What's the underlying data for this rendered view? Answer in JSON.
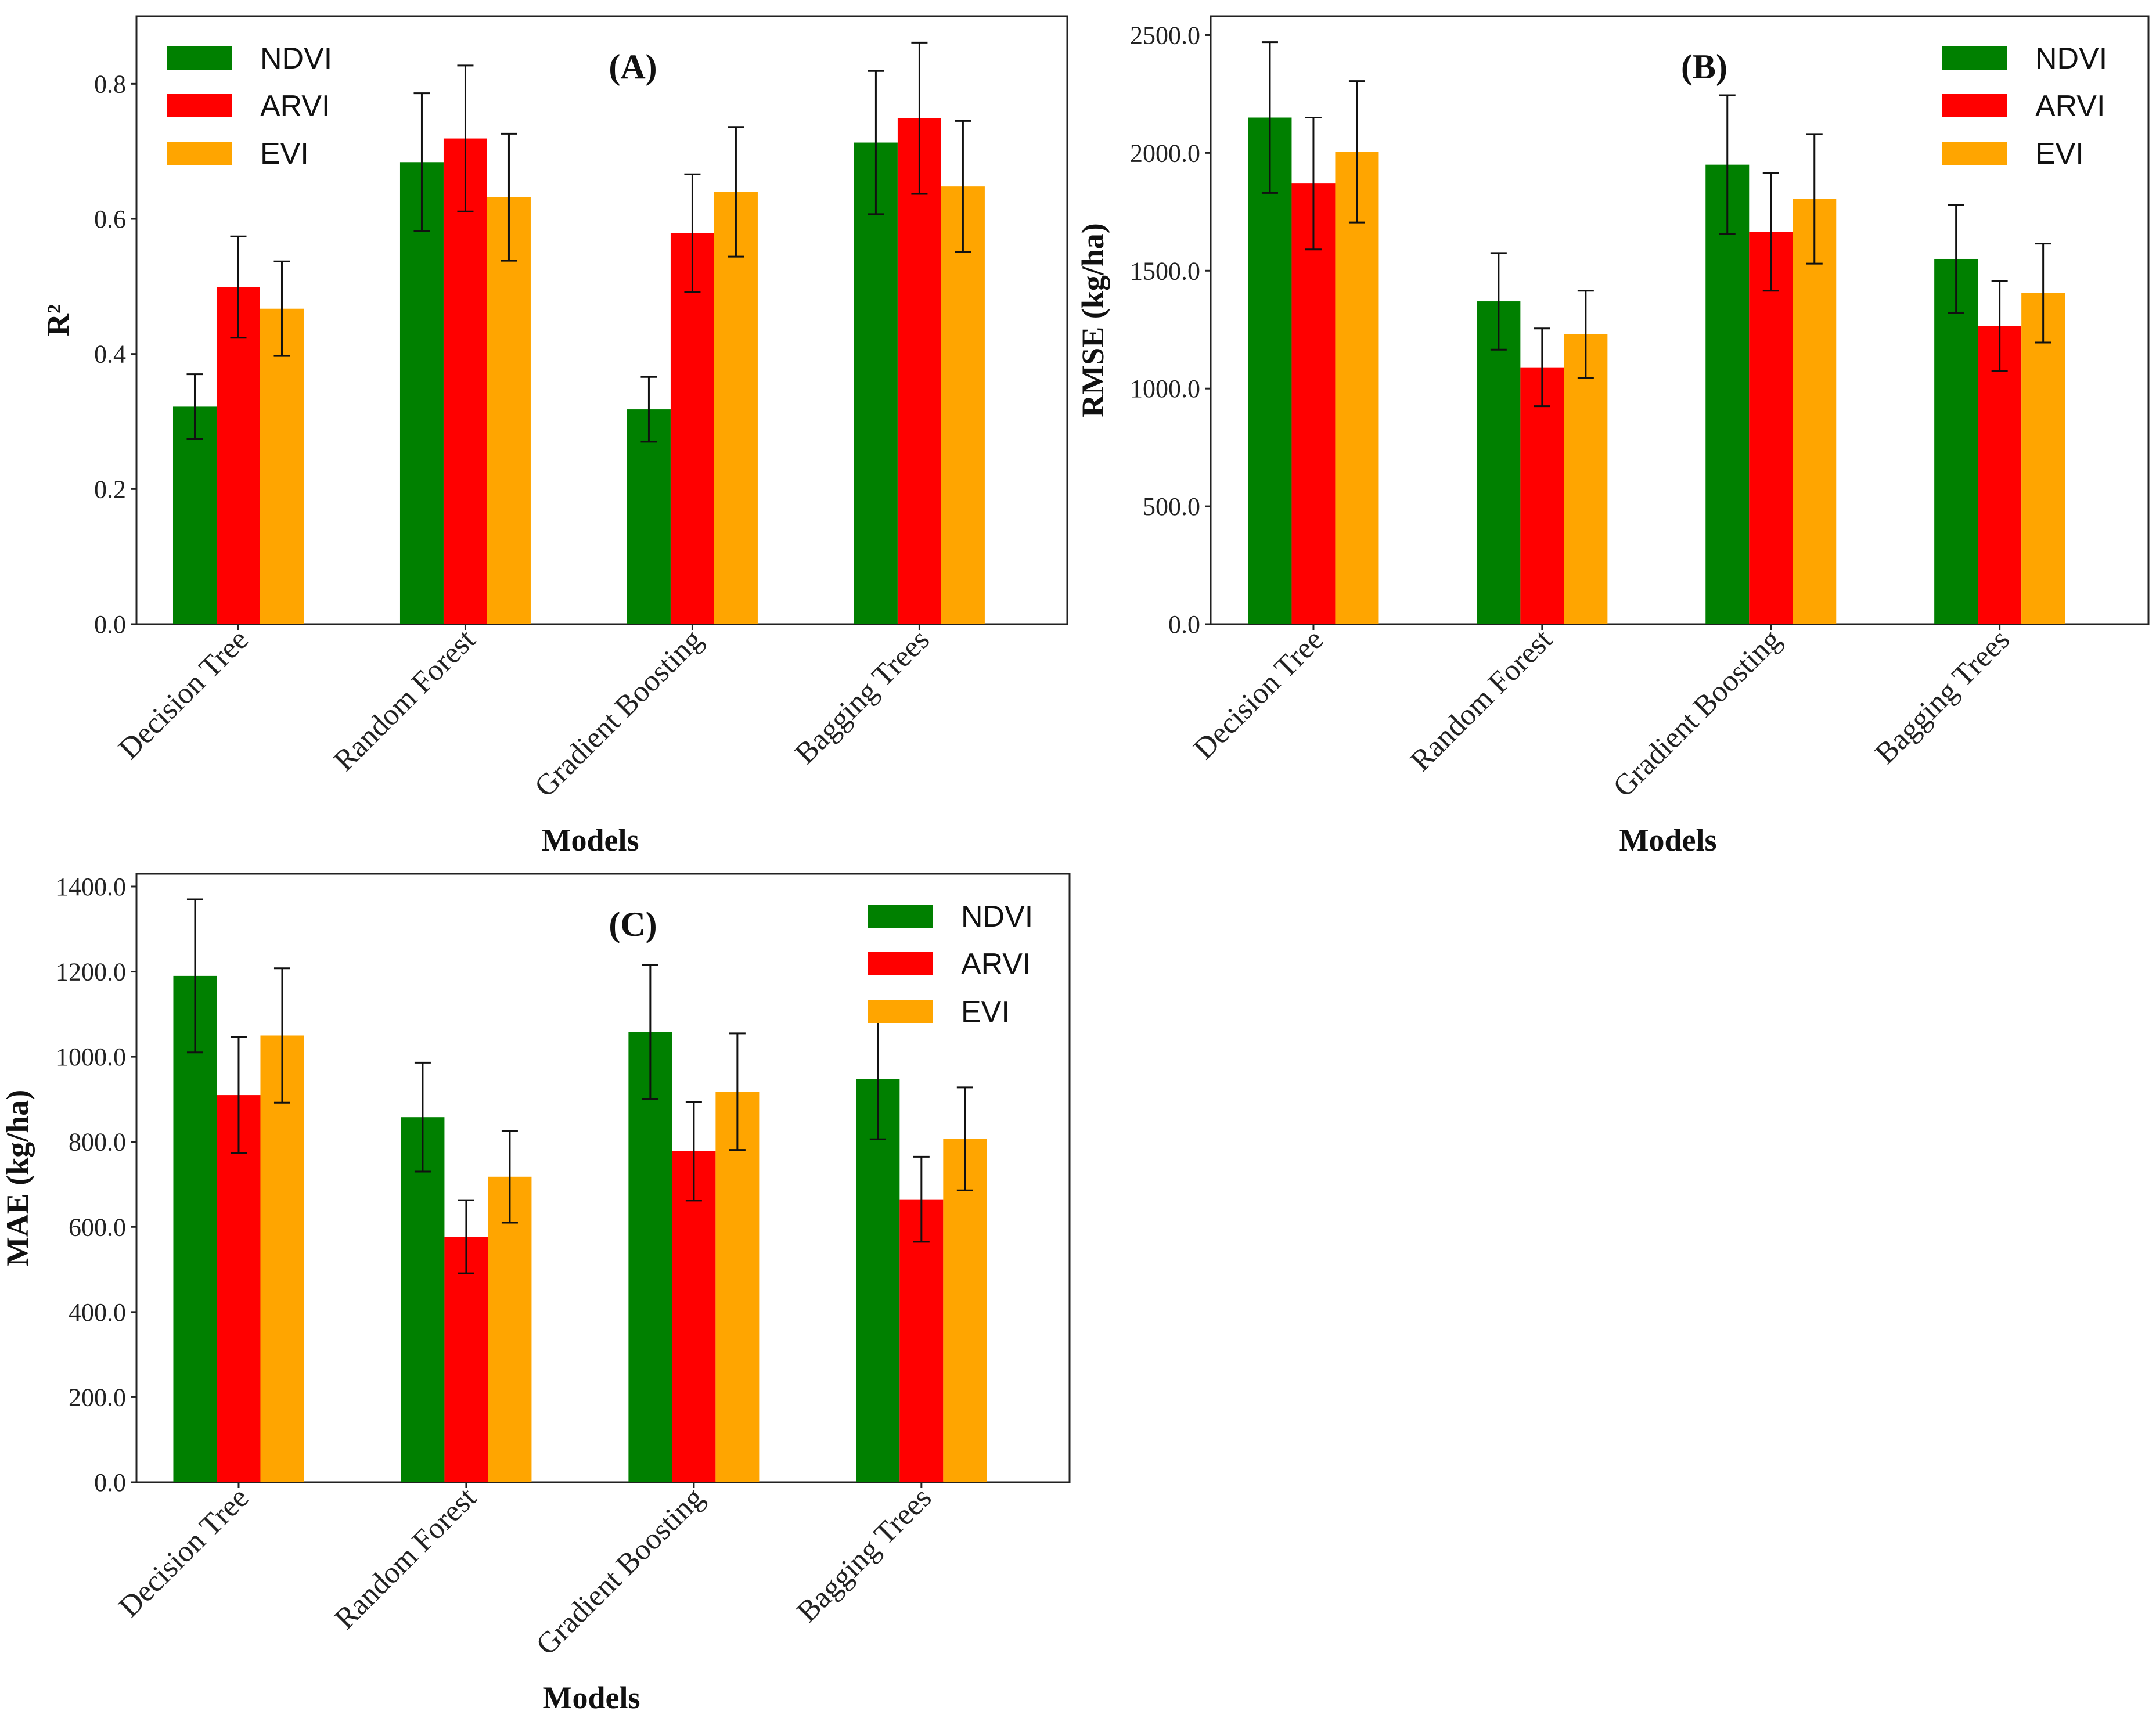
{
  "chart_data": [
    {
      "type": "bar",
      "panel_label": "(A)",
      "categories": [
        "Decision Tree",
        "Random Forest",
        "Gradient Boosting",
        "Bagging Trees"
      ],
      "xlabel": "Models",
      "ylabel": "R²",
      "ylim": [
        0,
        0.9
      ],
      "yticks": [
        0.0,
        0.2,
        0.4,
        0.6,
        0.8
      ],
      "tick_format": 1,
      "legend_position": "top-left",
      "series": [
        {
          "name": "NDVI",
          "color": "#008000",
          "values": [
            0.322,
            0.684,
            0.318,
            0.713
          ],
          "errors": [
            0.048,
            0.102,
            0.048,
            0.106
          ]
        },
        {
          "name": "ARVI",
          "color": "#ff0000",
          "values": [
            0.499,
            0.719,
            0.579,
            0.749
          ],
          "errors": [
            0.075,
            0.108,
            0.087,
            0.112
          ]
        },
        {
          "name": "EVI",
          "color": "#ffa500",
          "values": [
            0.467,
            0.632,
            0.64,
            0.648
          ],
          "errors": [
            0.07,
            0.094,
            0.096,
            0.097
          ]
        }
      ]
    },
    {
      "type": "bar",
      "panel_label": "(B)",
      "categories": [
        "Decision Tree",
        "Random Forest",
        "Gradient Boosting",
        "Bagging Trees"
      ],
      "xlabel": "Models",
      "ylabel": "RMSE (kg/ha)",
      "ylim": [
        0,
        2580
      ],
      "yticks": [
        0,
        500,
        1000,
        1500,
        2000,
        2500
      ],
      "tick_format": 1,
      "legend_position": "top-right",
      "series": [
        {
          "name": "NDVI",
          "color": "#008000",
          "values": [
            2150,
            1370,
            1950,
            1550
          ],
          "errors": [
            320,
            205,
            295,
            230
          ]
        },
        {
          "name": "ARVI",
          "color": "#ff0000",
          "values": [
            1870,
            1090,
            1665,
            1265
          ],
          "errors": [
            280,
            165,
            250,
            190
          ]
        },
        {
          "name": "EVI",
          "color": "#ffa500",
          "values": [
            2005,
            1230,
            1805,
            1405
          ],
          "errors": [
            300,
            185,
            275,
            210
          ]
        }
      ]
    },
    {
      "type": "bar",
      "panel_label": "(C)",
      "categories": [
        "Decision Tree",
        "Random Forest",
        "Gradient Boosting",
        "Bagging Trees"
      ],
      "xlabel": "Models",
      "ylabel": "MAE (kg/ha)",
      "ylim": [
        0,
        1430
      ],
      "yticks": [
        0,
        200,
        400,
        600,
        800,
        1000,
        1200,
        1400
      ],
      "tick_format": 1,
      "legend_position": "top-right",
      "series": [
        {
          "name": "NDVI",
          "color": "#008000",
          "values": [
            1190,
            858,
            1058,
            948
          ],
          "errors": [
            180,
            128,
            158,
            142
          ]
        },
        {
          "name": "ARVI",
          "color": "#ff0000",
          "values": [
            910,
            577,
            778,
            665
          ],
          "errors": [
            136,
            86,
            116,
            100
          ]
        },
        {
          "name": "EVI",
          "color": "#ffa500",
          "values": [
            1050,
            718,
            918,
            807
          ],
          "errors": [
            158,
            108,
            137,
            121
          ]
        }
      ]
    }
  ]
}
